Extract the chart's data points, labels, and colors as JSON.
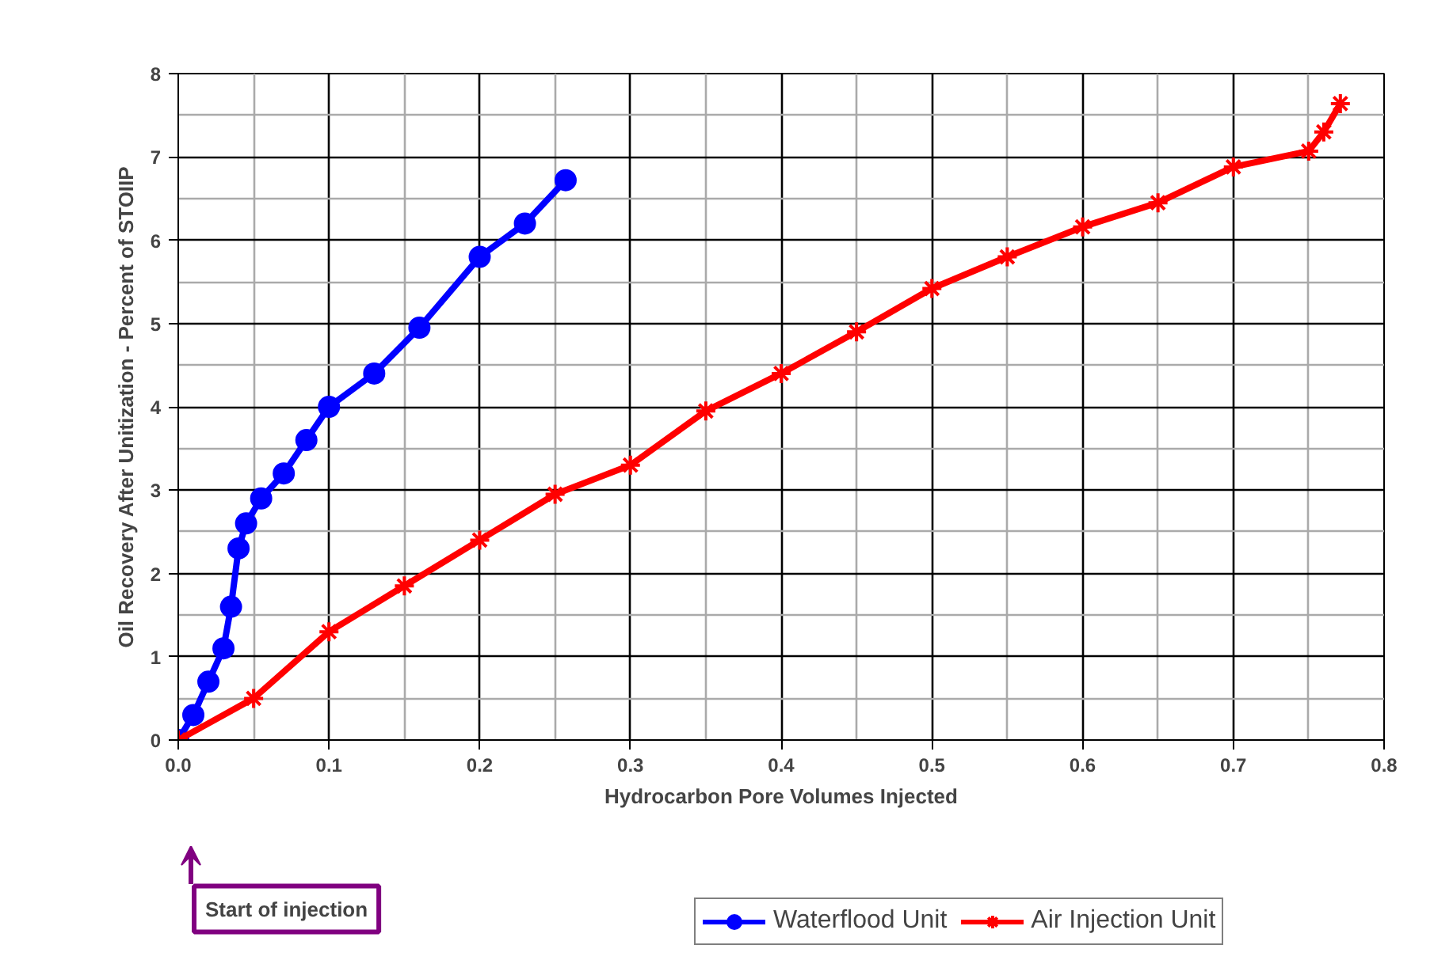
{
  "chart_data": {
    "type": "line",
    "xlabel": "Hydrocarbon Pore Volumes Injected",
    "ylabel": "Oil Recovery After Unitization - Percent of STOIIP",
    "xlim": [
      0,
      0.8
    ],
    "ylim": [
      0,
      8
    ],
    "xticks": [
      {
        "value": 0,
        "label": "0.0"
      },
      {
        "value": 0.1,
        "label": "0.1"
      },
      {
        "value": 0.2,
        "label": "0.2"
      },
      {
        "value": 0.3,
        "label": "0.3"
      },
      {
        "value": 0.4,
        "label": "0.4"
      },
      {
        "value": 0.5,
        "label": "0.5"
      },
      {
        "value": 0.6,
        "label": "0.6"
      },
      {
        "value": 0.7,
        "label": "0.7"
      },
      {
        "value": 0.8,
        "label": "0.8"
      }
    ],
    "yticks": [
      0,
      1,
      2,
      3,
      4,
      5,
      6,
      7,
      8
    ],
    "grid": true,
    "legend": "bottom",
    "series": [
      {
        "name": "Waterflood Unit",
        "color": "#0000ff",
        "marker": "circle",
        "x": [
          0,
          0.01,
          0.02,
          0.03,
          0.035,
          0.04,
          0.045,
          0.055,
          0.07,
          0.085,
          0.1,
          0.13,
          0.16,
          0.2,
          0.23,
          0.257
        ],
        "values": [
          0,
          0.3,
          0.7,
          1.1,
          1.6,
          2.3,
          2.6,
          2.9,
          3.2,
          3.6,
          4.0,
          4.4,
          4.95,
          5.8,
          6.2,
          6.72
        ]
      },
      {
        "name": "Air Injection Unit",
        "color": "#ff0000",
        "marker": "cross",
        "x": [
          0,
          0.05,
          0.1,
          0.15,
          0.2,
          0.25,
          0.3,
          0.35,
          0.4,
          0.45,
          0.5,
          0.55,
          0.6,
          0.65,
          0.7,
          0.75,
          0.76,
          0.771
        ],
        "values": [
          0,
          0.5,
          1.3,
          1.85,
          2.4,
          2.95,
          3.3,
          3.95,
          4.4,
          4.9,
          5.42,
          5.8,
          6.16,
          6.45,
          6.88,
          7.07,
          7.3,
          7.64
        ]
      }
    ],
    "annotations": [
      "Start of injection"
    ]
  }
}
